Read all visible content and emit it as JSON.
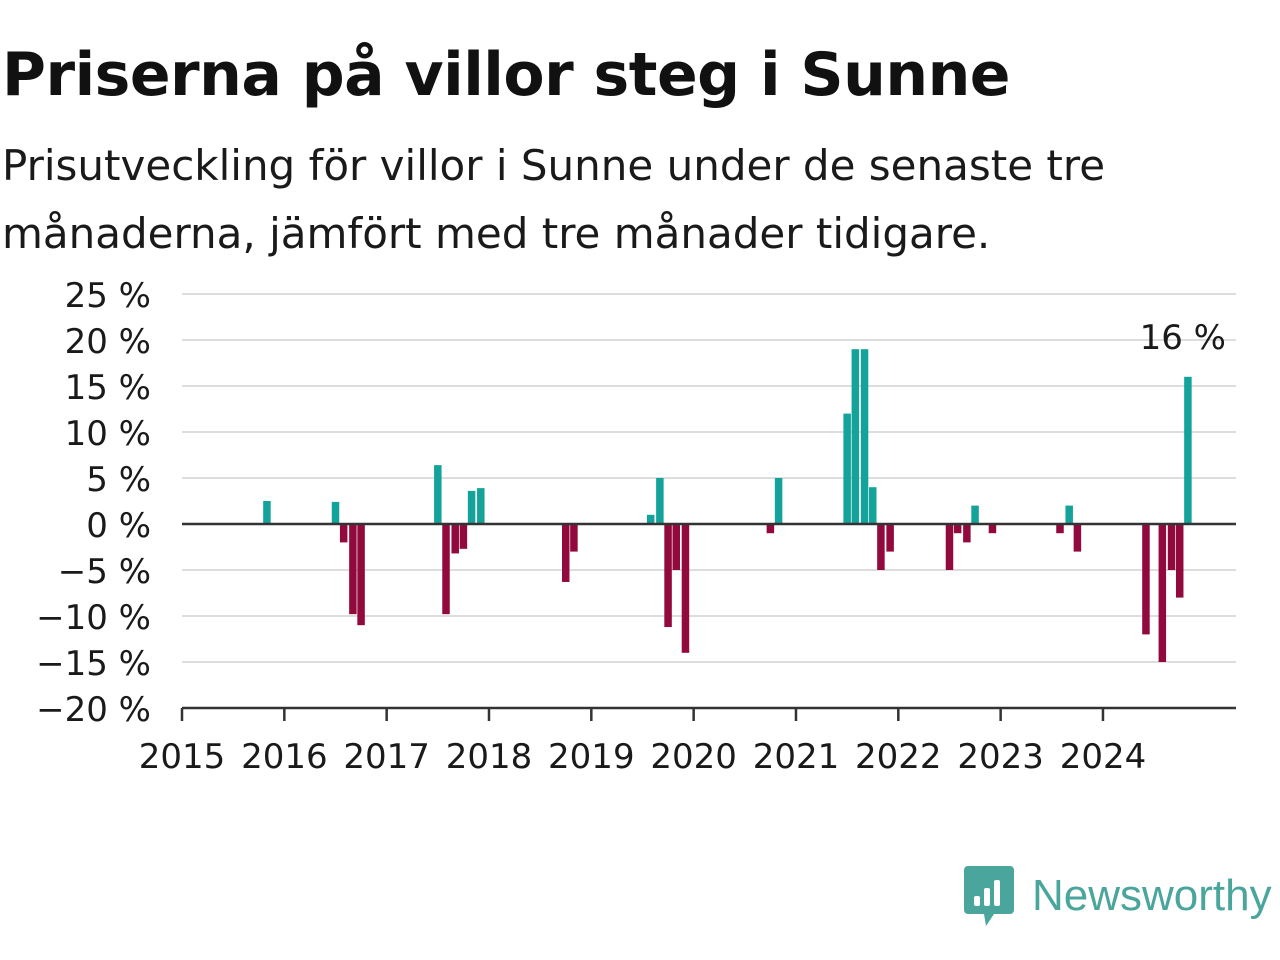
{
  "header": {
    "title": "Priserna på villor steg i Sunne",
    "subtitle": "Prisutveckling för villor i Sunne under de senaste tre månaderna, jämfört med tre månader tidigare."
  },
  "brand": {
    "name": "Newsworthy",
    "icon": "newsworthy-logo-icon",
    "color": "#4aa59c"
  },
  "colors": {
    "positive": "#14a39a",
    "negative": "#920a3d",
    "grid": "#dddddd",
    "zero_line": "#333333"
  },
  "chart_data": {
    "type": "bar",
    "title": "Priserna på villor steg i Sunne",
    "xlabel": "",
    "ylabel": "",
    "ylim": [
      -20,
      25
    ],
    "xlim": [
      2015.0,
      2025.3
    ],
    "y_ticks": [
      25,
      20,
      15,
      10,
      5,
      0,
      -5,
      -10,
      -15,
      -20
    ],
    "y_tick_labels": [
      "25 %",
      "20 %",
      "15 %",
      "10 %",
      "5 %",
      "0 %",
      "−5 %",
      "−10 %",
      "−15 %",
      "−20 %"
    ],
    "x_ticks": [
      2015,
      2016,
      2017,
      2018,
      2019,
      2020,
      2021,
      2022,
      2023,
      2024
    ],
    "x_tick_labels": [
      "2015",
      "2016",
      "2017",
      "2018",
      "2019",
      "2020",
      "2021",
      "2022",
      "2023",
      "2024"
    ],
    "grid": true,
    "annotation": {
      "text": "16 %",
      "x": 2024.83,
      "y": 16
    },
    "series": [
      {
        "x": [
          2015.83,
          2016.5,
          2016.58,
          2016.67,
          2016.75,
          2017.5,
          2017.58,
          2017.67,
          2017.75,
          2017.83,
          2017.92,
          2018.75,
          2018.83,
          2019.58,
          2019.67,
          2019.75,
          2019.83,
          2019.92,
          2020.75,
          2020.83,
          2021.5,
          2021.58,
          2021.67,
          2021.75,
          2021.83,
          2021.92,
          2022.5,
          2022.58,
          2022.67,
          2022.75,
          2022.92,
          2023.58,
          2023.67,
          2023.75,
          2024.42,
          2024.58,
          2024.67,
          2024.75,
          2024.83
        ],
        "values": [
          2.5,
          2.4,
          -2.0,
          -9.8,
          -11.0,
          6.4,
          -9.8,
          -3.2,
          -2.7,
          3.6,
          3.9,
          -6.3,
          -3.0,
          1.0,
          5.0,
          -11.2,
          -5.0,
          -14.0,
          -1.0,
          5.0,
          12.0,
          19.0,
          19.0,
          4.0,
          -5.0,
          -3.0,
          -5.0,
          -1.0,
          -2.0,
          2.0,
          -1.0,
          -1.0,
          2.0,
          -3.0,
          -12.0,
          -15.0,
          -5.0,
          -8.0,
          16.0
        ]
      }
    ]
  }
}
